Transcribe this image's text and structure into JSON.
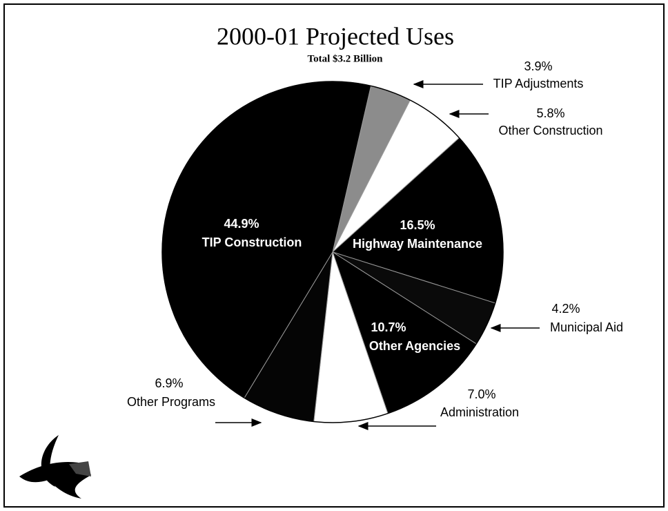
{
  "chart_data": {
    "type": "pie",
    "title": "2000-01 Projected Uses",
    "subtitle": "Total $3.2 Billion",
    "categories": [
      "TIP Adjustments",
      "Other Construction",
      "Highway Maintenance",
      "Municipal Aid",
      "Other Agencies",
      "Administration",
      "Other Programs",
      "TIP Construction"
    ],
    "values": [
      3.9,
      5.8,
      16.5,
      4.2,
      10.7,
      7.0,
      6.9,
      44.9
    ],
    "value_labels": [
      "3.9%",
      "5.8%",
      "16.5%",
      "4.2%",
      "10.7%",
      "7.0%",
      "6.9%",
      "44.9%"
    ],
    "colors": [
      "#8c8c8c",
      "#ffffff",
      "#000000",
      "#0a0a0a",
      "#000000",
      "#ffffff",
      "#050505",
      "#000000"
    ]
  }
}
